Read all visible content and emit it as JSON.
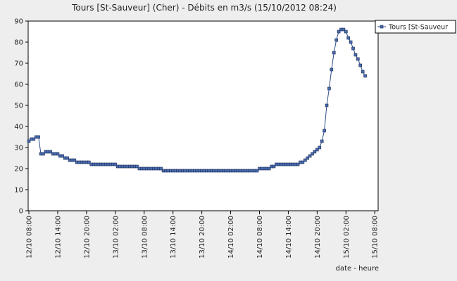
{
  "chart_data": {
    "type": "line",
    "title": "Tours [St-Sauveur] (Cher) - Débits en m3/s (15/10/2012 08:24)",
    "x_label": "date - heure",
    "x": [
      0,
      0.5,
      1,
      1.5,
      2,
      2.5,
      3,
      3.5,
      4,
      4.5,
      5,
      5.5,
      6,
      6.5,
      7,
      7.5,
      8,
      8.5,
      9,
      9.5,
      10,
      10.5,
      11,
      11.5,
      12,
      12.5,
      13,
      13.5,
      14,
      14.5,
      15,
      15.5,
      16,
      16.5,
      17,
      17.5,
      18,
      18.5,
      19,
      19.5,
      20,
      20.5,
      21,
      21.5,
      22,
      22.5,
      23,
      23.5,
      24,
      24.5,
      25,
      25.5,
      26,
      26.5,
      27,
      27.5,
      28,
      28.5,
      29,
      29.5,
      30,
      30.5,
      31,
      31.5,
      32,
      32.5,
      33,
      33.5,
      34,
      34.5,
      35,
      35.5,
      36,
      36.5,
      37,
      37.5,
      38,
      38.5,
      39,
      39.5,
      40,
      40.5,
      41,
      41.5,
      42,
      42.5,
      43,
      43.5,
      44,
      44.5,
      45,
      45.5,
      46,
      46.5,
      47,
      47.5,
      48,
      48.5,
      49,
      49.5,
      50,
      50.5,
      51,
      51.5,
      52,
      52.5,
      53,
      53.5,
      54,
      54.5,
      55,
      55.5,
      56,
      56.5,
      57,
      57.5,
      58,
      58.5,
      59,
      59.5,
      60,
      60.5,
      61,
      61.5,
      62,
      62.5,
      63,
      63.5,
      64,
      64.5,
      65,
      65.5,
      66,
      66.5,
      67,
      67.5,
      68,
      68.5,
      69,
      69.5,
      70
    ],
    "series": [
      {
        "name": "Tours [St-Sauveur",
        "color": "#2f4d8a",
        "marker_color": "#4a6db0",
        "values": [
          33,
          34,
          34,
          35,
          35,
          27,
          27,
          28,
          28,
          28,
          27,
          27,
          27,
          26,
          26,
          25,
          25,
          24,
          24,
          24,
          23,
          23,
          23,
          23,
          23,
          23,
          22,
          22,
          22,
          22,
          22,
          22,
          22,
          22,
          22,
          22,
          22,
          21,
          21,
          21,
          21,
          21,
          21,
          21,
          21,
          21,
          20,
          20,
          20,
          20,
          20,
          20,
          20,
          20,
          20,
          20,
          19,
          19,
          19,
          19,
          19,
          19,
          19,
          19,
          19,
          19,
          19,
          19,
          19,
          19,
          19,
          19,
          19,
          19,
          19,
          19,
          19,
          19,
          19,
          19,
          19,
          19,
          19,
          19,
          19,
          19,
          19,
          19,
          19,
          19,
          19,
          19,
          19,
          19,
          19,
          19,
          20,
          20,
          20,
          20,
          20,
          21,
          21,
          22,
          22,
          22,
          22,
          22,
          22,
          22,
          22,
          22,
          22,
          23,
          23,
          24,
          25,
          26,
          27,
          28,
          29,
          30,
          33,
          38,
          50,
          58,
          67,
          75,
          81,
          85,
          86,
          86,
          85,
          82,
          80,
          77,
          74,
          72,
          69,
          66,
          64
        ]
      }
    ],
    "xlim": [
      -0.15,
      72.7
    ],
    "xticks": [
      {
        "value": 0,
        "label": "12/10 08:00"
      },
      {
        "value": 6,
        "label": "12/10 14:00"
      },
      {
        "value": 12,
        "label": "12/10 20:00"
      },
      {
        "value": 18,
        "label": "13/10 02:00"
      },
      {
        "value": 24,
        "label": "13/10 08:00"
      },
      {
        "value": 30,
        "label": "13/10 14:00"
      },
      {
        "value": 36,
        "label": "13/10 20:00"
      },
      {
        "value": 42,
        "label": "14/10 02:00"
      },
      {
        "value": 48,
        "label": "14/10 08:00"
      },
      {
        "value": 54,
        "label": "14/10 14:00"
      },
      {
        "value": 60,
        "label": "14/10 20:00"
      },
      {
        "value": 66,
        "label": "15/10 02:00"
      },
      {
        "value": 72,
        "label": "15/10 08:00"
      }
    ],
    "ylim": [
      0,
      90
    ],
    "yticks": [
      0,
      10,
      20,
      30,
      40,
      50,
      60,
      70,
      80,
      90
    ],
    "legend": "top-right"
  }
}
